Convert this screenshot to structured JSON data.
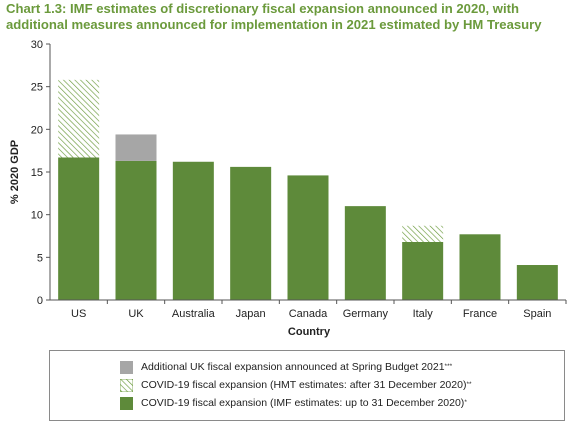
{
  "title_line1": "Chart 1.3: IMF estimates of discretionary fiscal expansion announced in 2020, with",
  "title_line2": "additional measures announced for implementation in 2021 estimated by HM Treasury",
  "colors": {
    "imf": "#5e8a3a",
    "hmt": "#5e8a3a",
    "spring": "#a6a6a6",
    "title": "#6b9a3c"
  },
  "chart_data": {
    "type": "bar",
    "stacked": true,
    "categories": [
      "US",
      "UK",
      "Australia",
      "Japan",
      "Canada",
      "Germany",
      "Italy",
      "France",
      "Spain"
    ],
    "series": [
      {
        "name": "COVID-19 fiscal expansion (IMF estimates: up to 31 December 2020)",
        "values": [
          16.7,
          16.3,
          16.2,
          15.6,
          14.6,
          11.0,
          6.8,
          7.7,
          4.1
        ]
      },
      {
        "name": "COVID-19 fiscal expansion (HMT estimates: after 31 December 2020)",
        "values": [
          9.1,
          0,
          0,
          0,
          0,
          0,
          1.9,
          0,
          0
        ]
      },
      {
        "name": "Additional UK fiscal expansion announced at Spring Budget 2021",
        "values": [
          0,
          3.1,
          0,
          0,
          0,
          0,
          0,
          0,
          0
        ]
      }
    ],
    "xlabel": "Country",
    "ylabel": "% 2020 GDP",
    "ylim": [
      0,
      30
    ],
    "yticks": [
      0,
      5,
      10,
      15,
      20,
      25,
      30
    ],
    "grid": false,
    "legend_position": "bottom"
  },
  "legend": [
    {
      "label": "Additional UK fiscal expansion announced at Spring Budget 2021",
      "sup": "***",
      "style": "spring"
    },
    {
      "label": "COVID-19 fiscal expansion (HMT estimates: after 31 December 2020)",
      "sup": "**",
      "style": "hmt"
    },
    {
      "label": "COVID-19 fiscal expansion (IMF estimates: up to 31 December 2020)",
      "sup": "*",
      "style": "imf"
    }
  ]
}
